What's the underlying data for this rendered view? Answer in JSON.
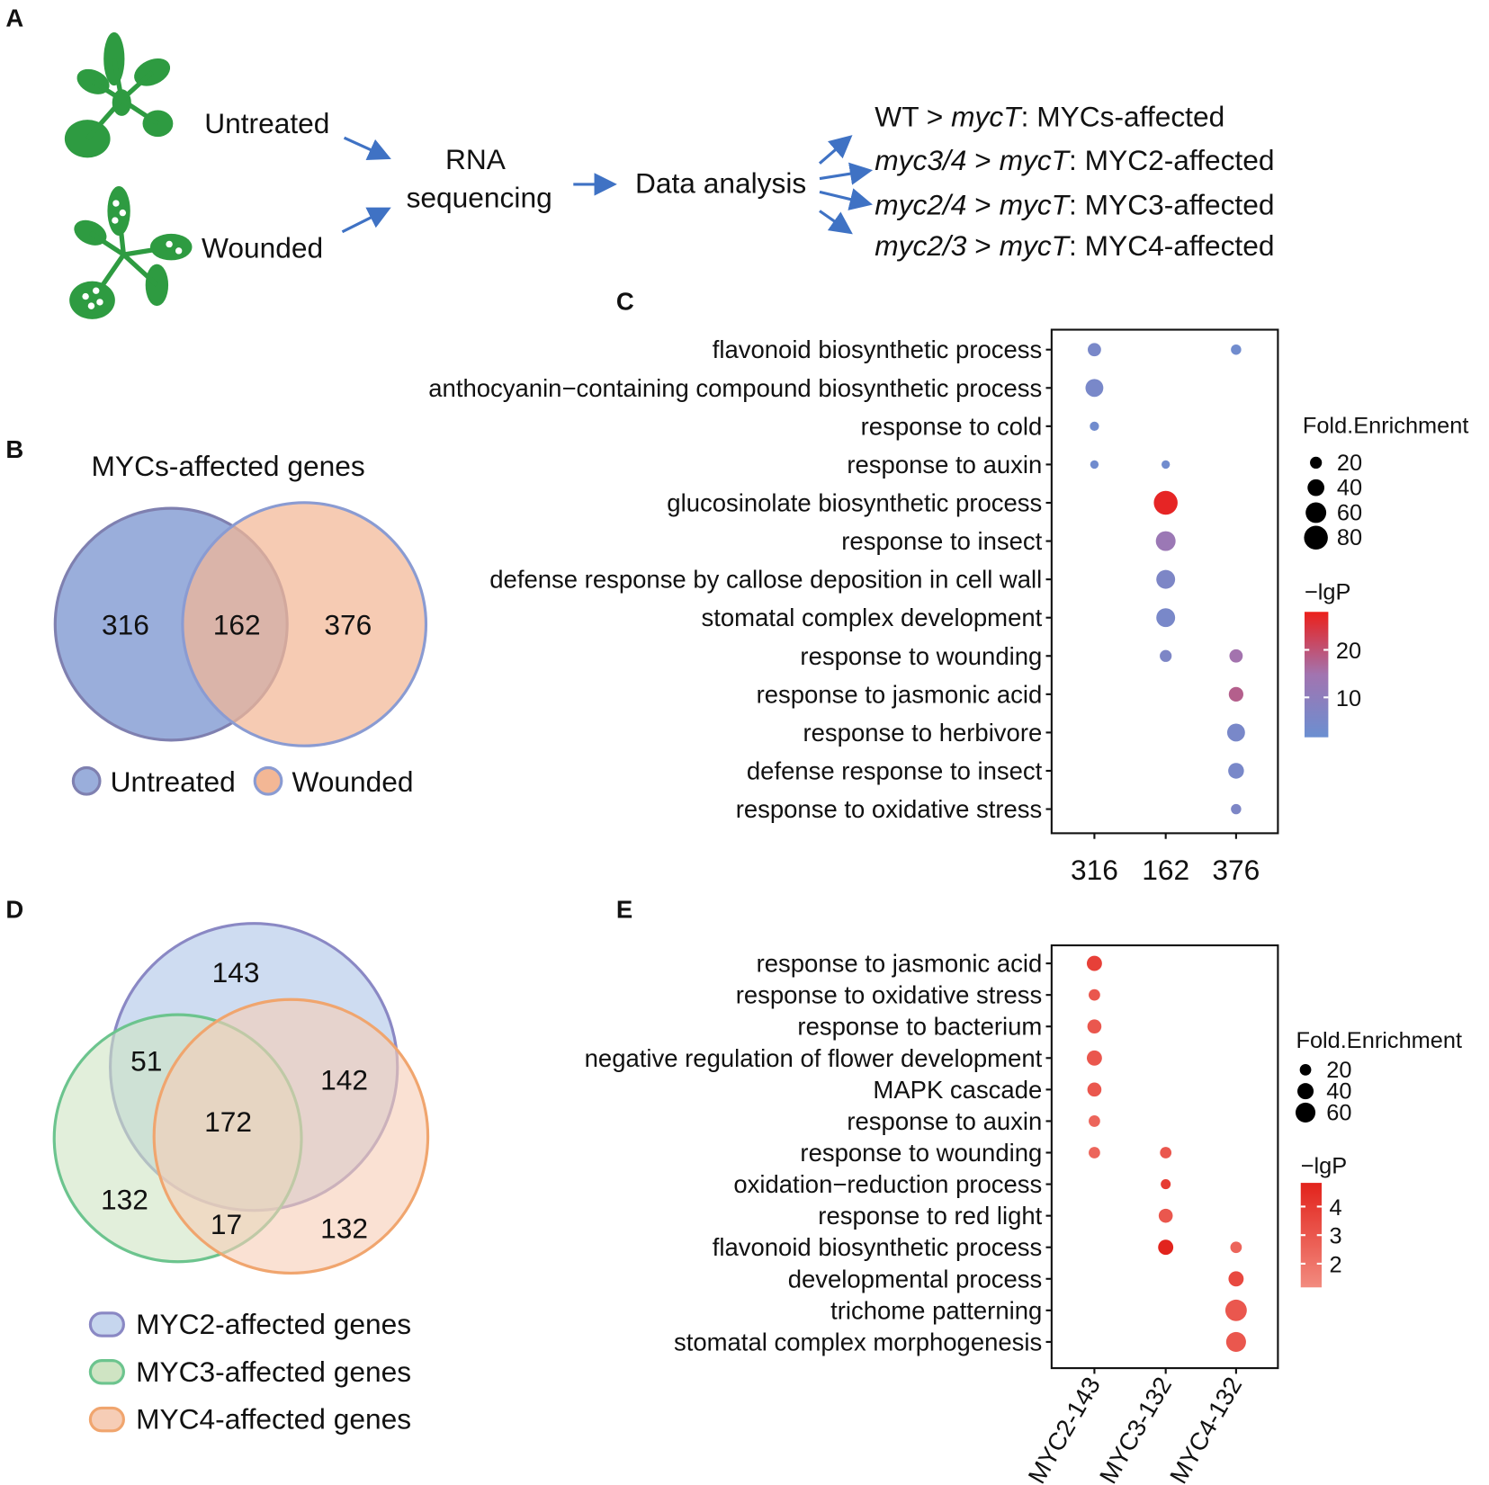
{
  "panel_labels": [
    "A",
    "B",
    "C",
    "D",
    "E"
  ],
  "workflow": {
    "inputs": [
      "Untreated",
      "Wounded"
    ],
    "step1": [
      "RNA",
      "sequencing"
    ],
    "step2": "Data analysis",
    "outcomes": [
      [
        {
          "text": "WT > ",
          "italic": false
        },
        {
          "text": "mycT",
          "italic": true
        },
        {
          "text": ": MYCs-affected",
          "italic": false
        }
      ],
      [
        {
          "text": "myc3/4",
          "italic": true
        },
        {
          "text": " > ",
          "italic": false
        },
        {
          "text": "mycT",
          "italic": true
        },
        {
          "text": ": MYC2-affected",
          "italic": false
        }
      ],
      [
        {
          "text": "myc2/4",
          "italic": true
        },
        {
          "text": " > ",
          "italic": false
        },
        {
          "text": "mycT",
          "italic": true
        },
        {
          "text": ": MYC3-affected",
          "italic": false
        }
      ],
      [
        {
          "text": "myc2/3",
          "italic": true
        },
        {
          "text": " > ",
          "italic": false
        },
        {
          "text": "mycT",
          "italic": true
        },
        {
          "text": ": MYC4-affected",
          "italic": false
        }
      ]
    ]
  },
  "venn_b": {
    "title": "MYCs-affected genes",
    "sets": [
      {
        "name": "Untreated",
        "color": "#9aaedb",
        "stroke": "#7f80b0"
      },
      {
        "name": "Wounded",
        "color": "#f3b795",
        "stroke": "#8a9bd2"
      }
    ],
    "counts": {
      "untreated_only": 316,
      "both": 162,
      "wounded_only": 376
    }
  },
  "venn_d": {
    "sets": [
      {
        "name": "MYC2-affected genes",
        "color": "#c6d6ee",
        "stroke": "#8a88c4"
      },
      {
        "name": "MYC3-affected genes",
        "color": "#cfe4c3",
        "stroke": "#6cc48e"
      },
      {
        "name": "MYC4-affected genes",
        "color": "#f6cdb6",
        "stroke": "#f0a56e"
      }
    ],
    "counts": {
      "myc2_only": 143,
      "myc2_myc3": 51,
      "myc2_myc4": 142,
      "all": 172,
      "myc3_only": 132,
      "myc3_myc4": 17,
      "myc4_only": 132
    }
  },
  "chart_data": [
    {
      "type": "dot",
      "categories": [
        "flavonoid biosynthetic process",
        "anthocyanin−containing compound biosynthetic process",
        "response to cold",
        "response to auxin",
        "glucosinolate biosynthetic process",
        "response to insect",
        "defense response by callose deposition in cell wall",
        "stomatal complex development",
        "response to wounding",
        "response to jasmonic acid",
        "response to herbivore",
        "defense response to insect",
        "response to oxidative stress"
      ],
      "series": [
        {
          "name": "316",
          "values": [
            25,
            45,
            12,
            10,
            null,
            null,
            null,
            null,
            null,
            null,
            null,
            null,
            null
          ],
          "lgP": [
            5,
            5,
            3,
            3,
            null,
            null,
            null,
            null,
            null,
            null,
            null,
            null,
            null
          ]
        },
        {
          "name": "162",
          "values": [
            null,
            null,
            null,
            10,
            80,
            55,
            50,
            50,
            20,
            null,
            null,
            null,
            null
          ],
          "lgP": [
            null,
            null,
            null,
            3,
            27,
            13,
            6,
            5,
            6,
            null,
            null,
            null,
            null
          ]
        },
        {
          "name": "376",
          "values": [
            15,
            null,
            null,
            null,
            null,
            null,
            null,
            null,
            25,
            30,
            45,
            35,
            15
          ],
          "lgP": [
            3,
            null,
            null,
            null,
            null,
            null,
            null,
            null,
            15,
            18,
            5,
            5,
            6
          ]
        }
      ],
      "size_legend": {
        "title": "Fold.Enrichment",
        "values": [
          20,
          40,
          60,
          80
        ]
      },
      "color_legend": {
        "title": "−lgP",
        "lim": [
          1.6,
          28
        ],
        "ticks": [
          10,
          20
        ],
        "colors": [
          "#6b8fd1",
          "#a274b0",
          "#ec1f1a"
        ]
      }
    },
    {
      "type": "dot",
      "categories": [
        "response to jasmonic acid",
        "response to oxidative stress",
        "response to bacterium",
        "negative regulation of flower development",
        "MAPK cascade",
        "response to auxin",
        "response to wounding",
        "oxidation−reduction process",
        "response to red light",
        "flavonoid biosynthetic process",
        "developmental process",
        "trichome patterning",
        "stomatal complex morphogenesis"
      ],
      "series": [
        {
          "name": "MYC2-143",
          "values": [
            35,
            20,
            30,
            35,
            30,
            20,
            20,
            null,
            null,
            null,
            null,
            null,
            null
          ],
          "lgP": [
            3.8,
            3,
            3,
            3,
            3,
            2.5,
            2.5,
            null,
            null,
            null,
            null,
            null,
            null
          ]
        },
        {
          "name": "MYC3-132",
          "values": [
            null,
            null,
            null,
            null,
            null,
            null,
            20,
            15,
            30,
            35,
            null,
            null,
            null
          ],
          "lgP": [
            null,
            null,
            null,
            null,
            null,
            null,
            3,
            4,
            3,
            4.8,
            null,
            null,
            null
          ]
        },
        {
          "name": "MYC4-132",
          "values": [
            null,
            null,
            null,
            null,
            null,
            null,
            null,
            null,
            null,
            20,
            35,
            70,
            60
          ],
          "lgP": [
            null,
            null,
            null,
            null,
            null,
            null,
            null,
            null,
            null,
            2.5,
            3.5,
            3,
            3
          ]
        }
      ],
      "size_legend": {
        "title": "Fold.Enrichment",
        "values": [
          20,
          40,
          60
        ]
      },
      "color_legend": {
        "title": "−lgP",
        "lim": [
          1.17,
          4.83
        ],
        "ticks": [
          2,
          3,
          4
        ],
        "colors": [
          "#f28b7f",
          "#e2231c"
        ]
      }
    }
  ]
}
